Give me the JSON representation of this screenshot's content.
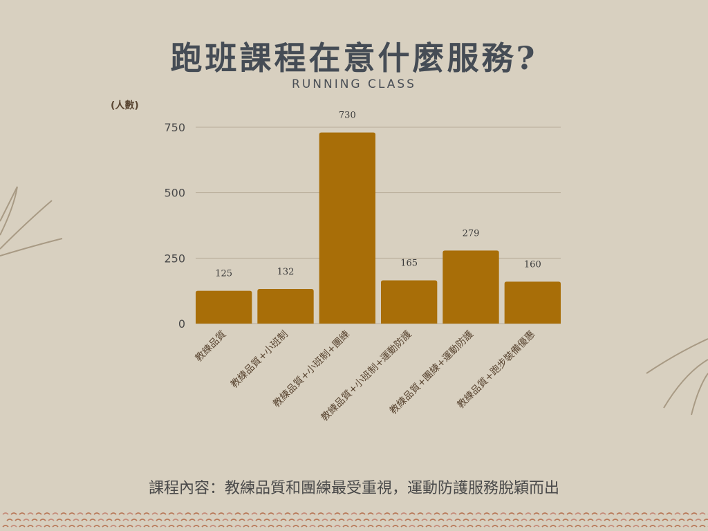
{
  "title": "跑班課程在意什麼服務?",
  "subtitle": "RUNNING CLASS",
  "caption": "課程內容：教練品質和團練最受重視，運動防護服務脫穎而出",
  "chart_data": {
    "type": "bar",
    "ylabel": "(人數)",
    "categories": [
      "教練品質",
      "教練品質+小班制",
      "教練品質+小班制+團練",
      "教練品質+小班制+運動防護",
      "教練品質+團練+運動防護",
      "教練品質+跑步裝備優惠"
    ],
    "values": [
      125,
      132,
      730,
      165,
      279,
      160
    ],
    "ylim": [
      0,
      750
    ],
    "yticks": [
      0,
      250,
      500,
      750
    ],
    "grid": true,
    "bar_color": "#a86e08"
  }
}
